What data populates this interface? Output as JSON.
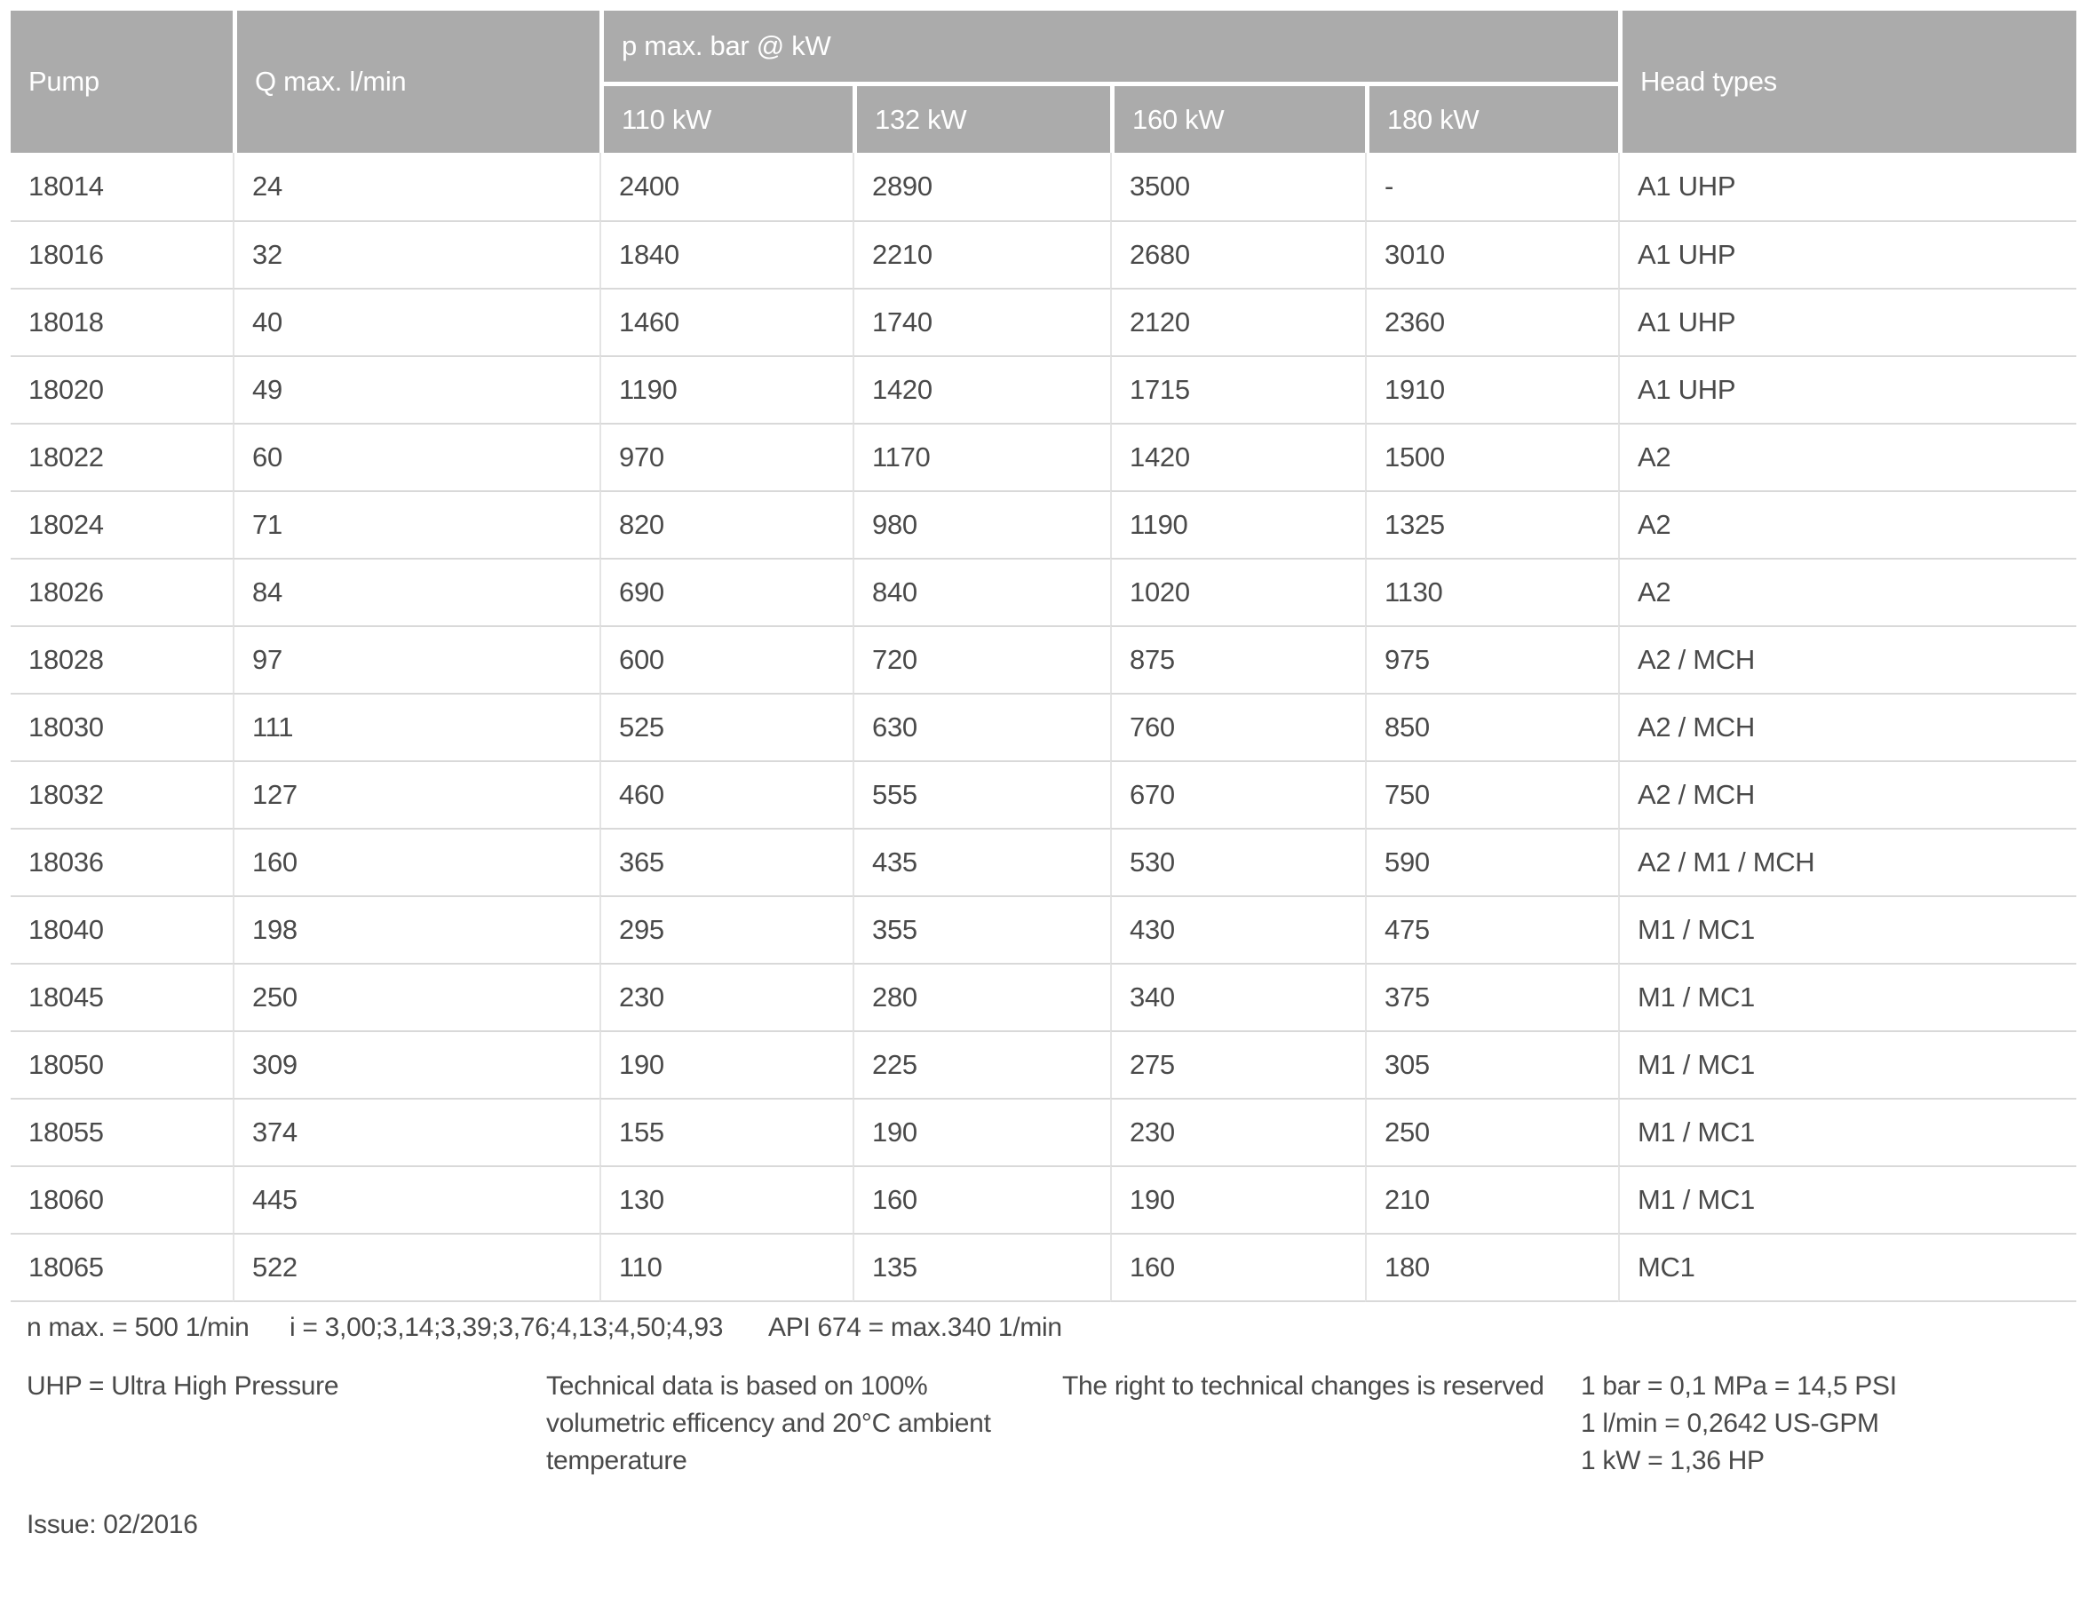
{
  "table": {
    "headers": {
      "pump": "Pump",
      "qmax": "Q max. l/min",
      "pmax": "p max. bar @ kW",
      "head_types": "Head types",
      "kw": [
        "110 kW",
        "132 kW",
        "160 kW",
        "180 kW"
      ]
    },
    "column_keys": [
      "pump",
      "qmax",
      "p110kw",
      "p132kw",
      "p160kw",
      "p180kw",
      "head-types"
    ],
    "rows": [
      [
        "18014",
        "24",
        "2400",
        "2890",
        "3500",
        "-",
        "A1 UHP"
      ],
      [
        "18016",
        "32",
        "1840",
        "2210",
        "2680",
        "3010",
        "A1 UHP"
      ],
      [
        "18018",
        "40",
        "1460",
        "1740",
        "2120",
        "2360",
        "A1 UHP"
      ],
      [
        "18020",
        "49",
        "1190",
        "1420",
        "1715",
        "1910",
        "A1 UHP"
      ],
      [
        "18022",
        "60",
        "970",
        "1170",
        "1420",
        "1500",
        "A2"
      ],
      [
        "18024",
        "71",
        "820",
        "980",
        "1190",
        "1325",
        "A2"
      ],
      [
        "18026",
        "84",
        "690",
        "840",
        "1020",
        "1130",
        "A2"
      ],
      [
        "18028",
        "97",
        "600",
        "720",
        "875",
        "975",
        "A2 / MCH"
      ],
      [
        "18030",
        "111",
        "525",
        "630",
        "760",
        "850",
        "A2 / MCH"
      ],
      [
        "18032",
        "127",
        "460",
        "555",
        "670",
        "750",
        "A2 / MCH"
      ],
      [
        "18036",
        "160",
        "365",
        "435",
        "530",
        "590",
        "A2 / M1 / MCH"
      ],
      [
        "18040",
        "198",
        "295",
        "355",
        "430",
        "475",
        "M1 / MC1"
      ],
      [
        "18045",
        "250",
        "230",
        "280",
        "340",
        "375",
        "M1 / MC1"
      ],
      [
        "18050",
        "309",
        "190",
        "225",
        "275",
        "305",
        "M1 / MC1"
      ],
      [
        "18055",
        "374",
        "155",
        "190",
        "230",
        "250",
        "M1 / MC1"
      ],
      [
        "18060",
        "445",
        "130",
        "160",
        "190",
        "210",
        "M1 / MC1"
      ],
      [
        "18065",
        "522",
        "110",
        "135",
        "160",
        "180",
        "MC1"
      ]
    ]
  },
  "footnotes": {
    "n_max": "n max. = 500 1/min",
    "i_ratios": "i = 3,00;3,14;3,39;3,76;4,13;4,50;4,93",
    "api": "API 674 = max.340 1/min"
  },
  "footer": {
    "uhp": "UHP = Ultra High Pressure",
    "technical_lines": [
      "Technical data is based on 100%",
      "volumetric efficency and 20°C ambient",
      "temperature"
    ],
    "rights": "The right to technical changes is reserved",
    "conversion_lines": [
      "1 bar = 0,1 MPa = 14,5 PSI",
      "1 l/min = 0,2642 US-GPM",
      "1 kW = 1,36 HP"
    ],
    "issue": "Issue: 02/2016"
  },
  "colors": {
    "header_bg": "#ababab",
    "header_text": "#ffffff",
    "body_text": "#4a4a4a",
    "row_line": "#d9d9d9",
    "col_line": "#e4e4e4"
  }
}
